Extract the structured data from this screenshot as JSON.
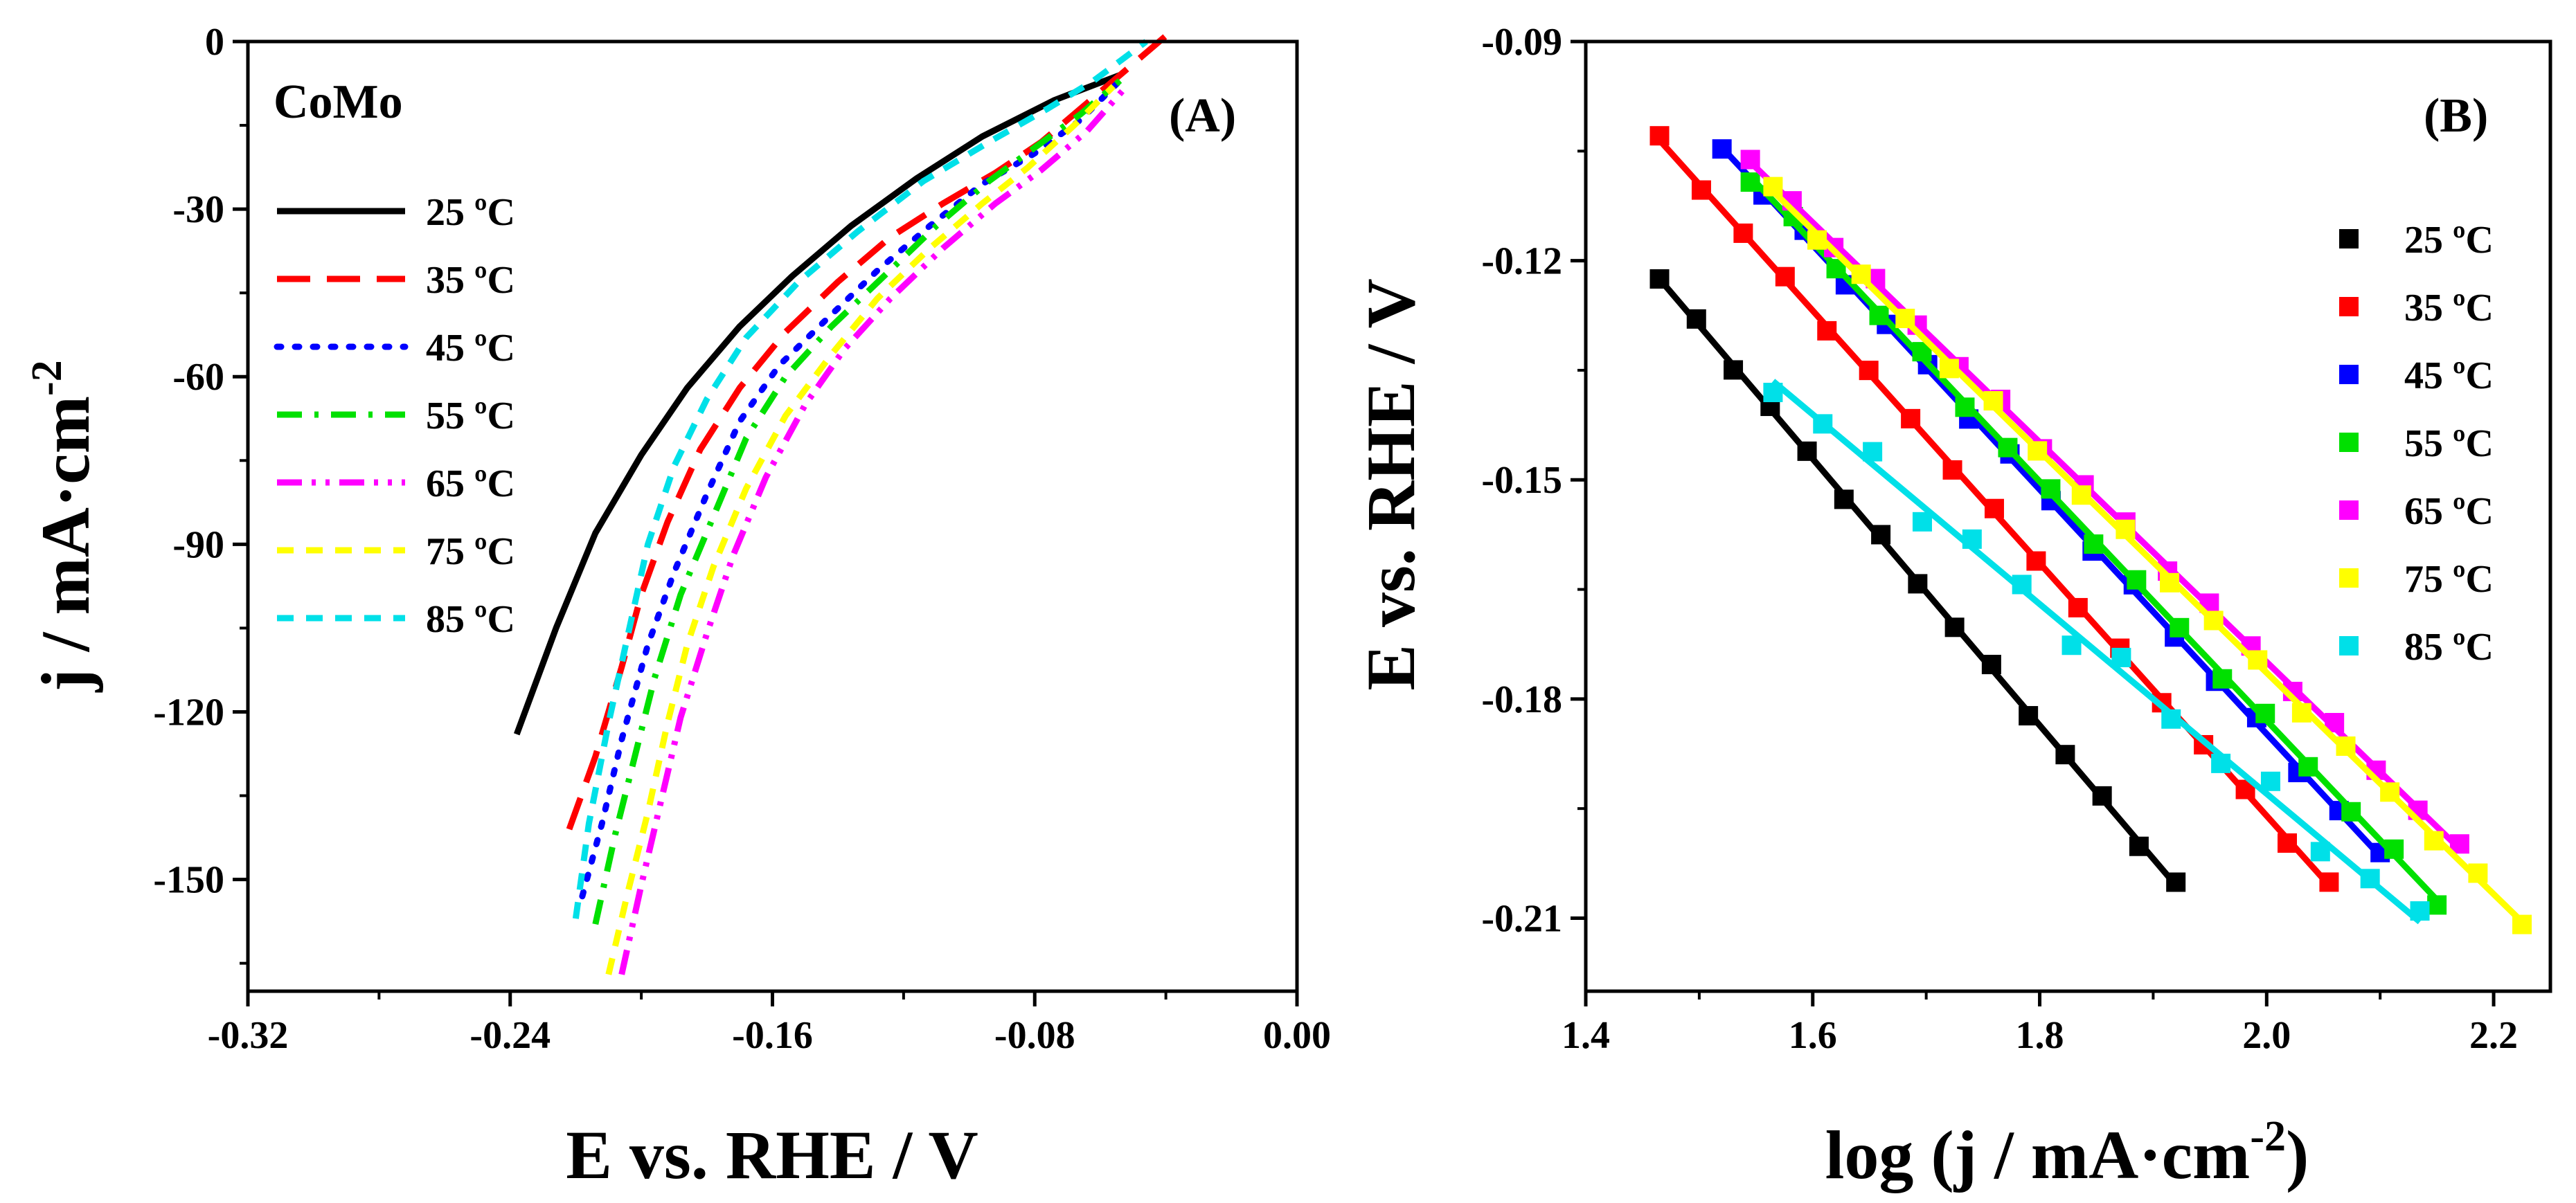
{
  "chart_data": [
    {
      "type": "line",
      "panel_label": "(A)",
      "title": "CoMo",
      "xlabel": "E vs. RHE /  V",
      "ylabel": "j / mA·cm",
      "ylabel_sup": "-2",
      "xlim": [
        -0.32,
        0.0
      ],
      "ylim": [
        -170,
        0
      ],
      "xticks": [
        -0.32,
        -0.24,
        -0.16,
        -0.08,
        0.0
      ],
      "xtick_labels": [
        "-0.32",
        "-0.24",
        "-0.16",
        "-0.08",
        "0.00"
      ],
      "yticks": [
        0,
        -30,
        -60,
        -90,
        -120,
        -150
      ],
      "ytick_labels": [
        "0",
        "-30",
        "-60",
        "-90",
        "-120",
        "-150"
      ],
      "series": [
        {
          "name": "25 ºC",
          "color": "#000000",
          "dash": "solid",
          "points": [
            [
              -0.238,
              -124
            ],
            [
              -0.226,
              -105
            ],
            [
              -0.214,
              -88
            ],
            [
              -0.2,
              -74
            ],
            [
              -0.186,
              -62
            ],
            [
              -0.17,
              -51
            ],
            [
              -0.154,
              -42
            ],
            [
              -0.136,
              -33
            ],
            [
              -0.116,
              -24.5
            ],
            [
              -0.096,
              -17
            ],
            [
              -0.074,
              -10.5
            ],
            [
              -0.054,
              -6
            ]
          ]
        },
        {
          "name": "35 ºC",
          "color": "#ff0000",
          "dash": "dash",
          "points": [
            [
              -0.222,
              -141
            ],
            [
              -0.214,
              -128
            ],
            [
              -0.206,
              -112
            ],
            [
              -0.2,
              -99
            ],
            [
              -0.192,
              -86
            ],
            [
              -0.182,
              -73
            ],
            [
              -0.17,
              -62
            ],
            [
              -0.156,
              -52
            ],
            [
              -0.14,
              -43
            ],
            [
              -0.124,
              -35
            ],
            [
              -0.108,
              -29
            ],
            [
              -0.092,
              -23.5
            ],
            [
              -0.078,
              -18
            ],
            [
              -0.064,
              -11
            ],
            [
              -0.052,
              -5
            ],
            [
              -0.04,
              1
            ]
          ]
        },
        {
          "name": "45 ºC",
          "color": "#0000ff",
          "dash": "dot",
          "points": [
            [
              -0.218,
              -153
            ],
            [
              -0.212,
              -140
            ],
            [
              -0.206,
              -125
            ],
            [
              -0.198,
              -108
            ],
            [
              -0.19,
              -95
            ],
            [
              -0.18,
              -81
            ],
            [
              -0.17,
              -68
            ],
            [
              -0.158,
              -58
            ],
            [
              -0.144,
              -50
            ],
            [
              -0.128,
              -41
            ],
            [
              -0.112,
              -33
            ],
            [
              -0.096,
              -25.5
            ],
            [
              -0.08,
              -20
            ],
            [
              -0.066,
              -14
            ],
            [
              -0.054,
              -7
            ]
          ]
        },
        {
          "name": "55 ºC",
          "color": "#00e000",
          "dash": "dashdot",
          "points": [
            [
              -0.214,
              -158
            ],
            [
              -0.208,
              -142
            ],
            [
              -0.202,
              -128
            ],
            [
              -0.196,
              -114
            ],
            [
              -0.188,
              -99
            ],
            [
              -0.178,
              -85
            ],
            [
              -0.168,
              -71
            ],
            [
              -0.156,
              -60
            ],
            [
              -0.142,
              -51
            ],
            [
              -0.126,
              -42
            ],
            [
              -0.11,
              -33
            ],
            [
              -0.094,
              -25
            ],
            [
              -0.08,
              -19
            ],
            [
              -0.066,
              -13
            ],
            [
              -0.054,
              -7
            ]
          ]
        },
        {
          "name": "65 ºC",
          "color": "#ff00ff",
          "dash": "dashdotdot",
          "points": [
            [
              -0.206,
              -167
            ],
            [
              -0.2,
              -151
            ],
            [
              -0.194,
              -136
            ],
            [
              -0.188,
              -121
            ],
            [
              -0.18,
              -106
            ],
            [
              -0.172,
              -92
            ],
            [
              -0.162,
              -78
            ],
            [
              -0.15,
              -65
            ],
            [
              -0.138,
              -55
            ],
            [
              -0.124,
              -46
            ],
            [
              -0.108,
              -37
            ],
            [
              -0.092,
              -29
            ],
            [
              -0.078,
              -23
            ],
            [
              -0.064,
              -16
            ],
            [
              -0.052,
              -8
            ]
          ]
        },
        {
          "name": "75 ºC",
          "color": "#ffff00",
          "dash": "shortdash",
          "points": [
            [
              -0.21,
              -167
            ],
            [
              -0.204,
              -152
            ],
            [
              -0.198,
              -138
            ],
            [
              -0.192,
              -122
            ],
            [
              -0.186,
              -108
            ],
            [
              -0.178,
              -94
            ],
            [
              -0.168,
              -80
            ],
            [
              -0.156,
              -67
            ],
            [
              -0.142,
              -56
            ],
            [
              -0.128,
              -46
            ],
            [
              -0.112,
              -37
            ],
            [
              -0.096,
              -29
            ],
            [
              -0.082,
              -22.5
            ],
            [
              -0.068,
              -15
            ],
            [
              -0.056,
              -8
            ]
          ]
        },
        {
          "name": "85 ºC",
          "color": "#00e0e8",
          "dash": "shortdash",
          "points": [
            [
              -0.22,
              -157
            ],
            [
              -0.216,
              -140
            ],
            [
              -0.21,
              -122
            ],
            [
              -0.204,
              -106
            ],
            [
              -0.198,
              -90
            ],
            [
              -0.19,
              -76
            ],
            [
              -0.18,
              -64
            ],
            [
              -0.168,
              -53
            ],
            [
              -0.152,
              -43
            ],
            [
              -0.134,
              -34
            ],
            [
              -0.114,
              -25
            ],
            [
              -0.094,
              -18
            ],
            [
              -0.076,
              -12
            ],
            [
              -0.062,
              -7
            ],
            [
              -0.046,
              0
            ]
          ]
        }
      ]
    },
    {
      "type": "scatter",
      "panel_label": "(B)",
      "xlabel": "log (j / mA·cm",
      "xlabel_sup": "-2",
      "xlabel_end": ")",
      "ylabel": "E vs. RHE / V",
      "xlim": [
        1.4,
        2.25
      ],
      "ylim": [
        -0.22,
        -0.09
      ],
      "xticks": [
        1.4,
        1.6,
        1.8,
        2.0,
        2.2
      ],
      "xtick_labels": [
        "1.4",
        "1.6",
        "1.8",
        "2.0",
        "2.2"
      ],
      "yticks": [
        -0.09,
        -0.12,
        -0.15,
        -0.18,
        -0.21
      ],
      "ytick_labels": [
        "-0.09",
        "-0.12",
        "-0.15",
        "-0.18",
        "-0.21"
      ],
      "series": [
        {
          "name": "25 ºC",
          "color": "#000000",
          "x0": 1.465,
          "x1": 1.92,
          "y0": -0.1225,
          "y1": -0.2055,
          "n": 15,
          "noise": 0.0006
        },
        {
          "name": "35 ºC",
          "color": "#ff0000",
          "x0": 1.465,
          "x1": 2.055,
          "y0": -0.1035,
          "y1": -0.2055,
          "n": 17,
          "noise": 0.0006
        },
        {
          "name": "45 ºC",
          "color": "#0000ff",
          "x0": 1.52,
          "x1": 2.1,
          "y0": -0.1045,
          "y1": -0.2015,
          "n": 17,
          "noise": 0.0008
        },
        {
          "name": "55 ºC",
          "color": "#00e000",
          "x0": 1.545,
          "x1": 2.15,
          "y0": -0.1085,
          "y1": -0.2075,
          "n": 17,
          "noise": 0.0008
        },
        {
          "name": "65 ºC",
          "color": "#ff00ff",
          "x0": 1.545,
          "x1": 2.17,
          "y0": -0.1065,
          "y1": -0.2005,
          "n": 18,
          "noise": 0.0007
        },
        {
          "name": "75 ºC",
          "color": "#ffff00",
          "x0": 1.565,
          "x1": 2.225,
          "y0": -0.1105,
          "y1": -0.2105,
          "n": 18,
          "noise": 0.0008
        },
        {
          "name": "85 ºC",
          "color": "#00e0e8",
          "x0": 1.565,
          "x1": 2.135,
          "y0": -0.1365,
          "y1": -0.2105,
          "n": 14,
          "noise": 0.0022
        }
      ]
    }
  ]
}
